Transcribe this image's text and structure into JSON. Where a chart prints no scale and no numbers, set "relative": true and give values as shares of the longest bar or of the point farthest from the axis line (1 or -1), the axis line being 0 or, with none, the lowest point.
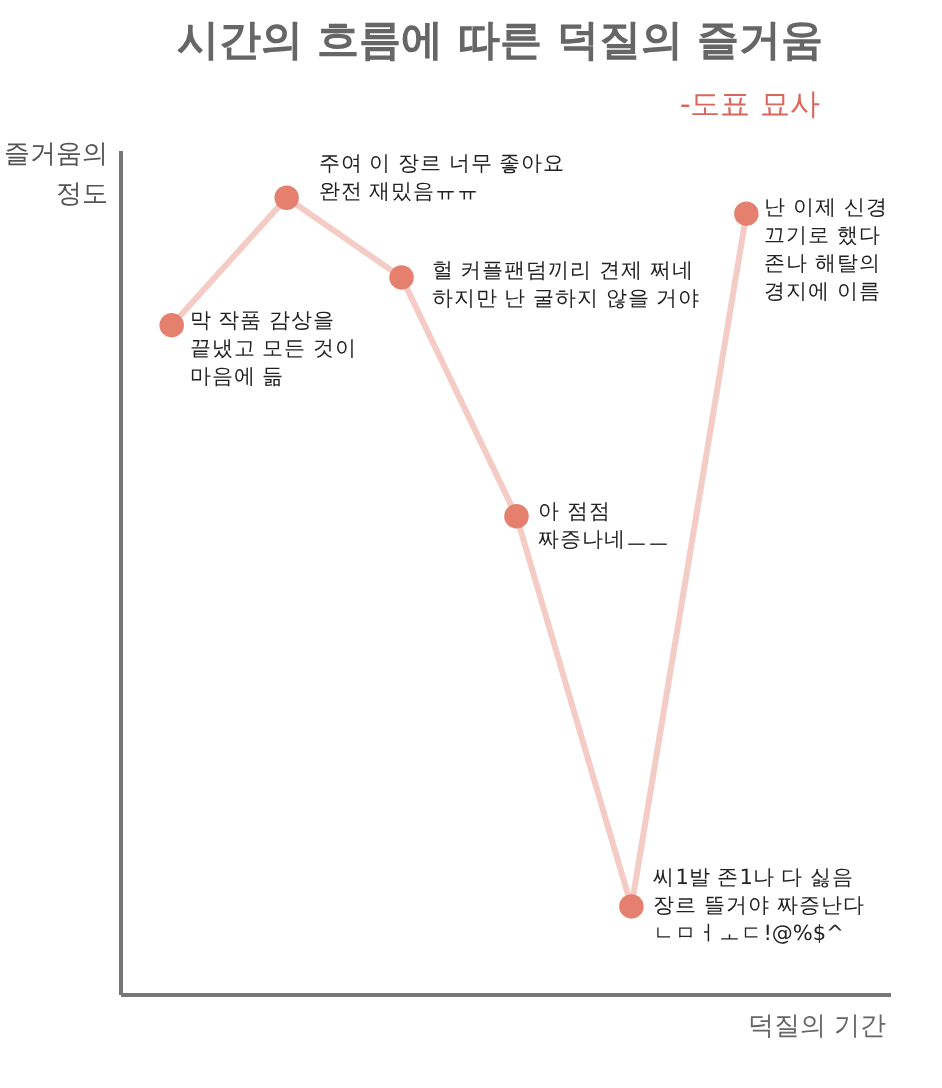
{
  "chart_data": {
    "type": "line",
    "title": "시간의 흐름에 따른 덕질의 즐거움",
    "subtitle": "-도표 묘사",
    "xlabel": "덕질의 기간",
    "ylabel": "즐거움의\n정도",
    "relative": true,
    "categories": [
      null,
      null,
      null,
      null,
      null,
      null
    ],
    "series": [
      {
        "color": "#e5806f",
        "values": [
          0.84,
          1,
          0.9,
          0.6,
          0.11,
          0.98
        ]
      }
    ],
    "annotations": [
      "막 작품 감상을\n끝냈고 모든 것이\n마음에 듦",
      "주여 이 장르 너무 좋아요\n완전 재밌음ㅠㅠ",
      "헐 커플팬덤끼리 견제 쩌네\n하지만 난 굴하지 않을 거야",
      "아 점점\n짜증나네ㅡㅡ",
      "씨1발 존1나 다 싫음\n장르 뜰거야 짜증난다\nㄴㅁㅓㅗㄷ!@%$^",
      "난 이제 신경\n끄기로 했다\n존나 해탈의\n경지에 이름"
    ],
    "marker": "circle",
    "line_style": "solid",
    "grid": false
  }
}
